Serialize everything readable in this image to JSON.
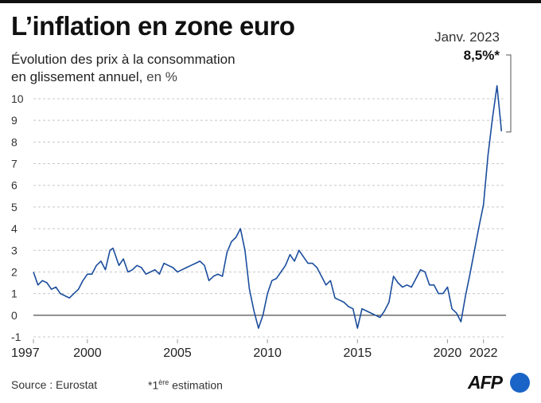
{
  "title": "L’inflation en zone euro",
  "subtitle_line1": "Évolution des prix à la consommation",
  "subtitle_line2": "en glissement annuel,",
  "subtitle_unit": "en %",
  "source": "Source : Eurostat",
  "footnote": {
    "star": "*1",
    "sup": "ère",
    "text": " estimation"
  },
  "logo": {
    "text": "AFP"
  },
  "colors": {
    "line": "#1a4d9c",
    "grid": "#c8c8c8",
    "axis": "#222222",
    "logo": "#1a64c8"
  },
  "chart_data": {
    "type": "line",
    "ylim": [
      -1,
      10.8
    ],
    "xlim": [
      1997,
      2023.25
    ],
    "y_ticks": [
      "10",
      "9",
      "8",
      "7",
      "6",
      "5",
      "4",
      "3",
      "2",
      "1",
      "0",
      "-1"
    ],
    "x_ticks": [
      "1997",
      "2000",
      "2005",
      "2010",
      "2015",
      "2020",
      "2022"
    ],
    "grid": "horizontal dashed",
    "annotation": {
      "label": "Janv. 2023",
      "value_label": "8,5%*",
      "x": 2023.0,
      "y": 8.5
    },
    "series": [
      {
        "x": [
          1997.0,
          1997.25,
          1997.5,
          1997.75,
          1998.0,
          1998.25,
          1998.5,
          1998.75,
          1999.0,
          1999.25,
          1999.5,
          1999.75,
          2000.0,
          2000.25,
          2000.5,
          2000.75,
          2001.0,
          2001.25,
          2001.42,
          2001.75,
          2002.0,
          2002.25,
          2002.5,
          2002.75,
          2003.0,
          2003.25,
          2003.5,
          2003.75,
          2004.0,
          2004.25,
          2004.5,
          2004.75,
          2005.0,
          2005.25,
          2005.5,
          2005.75,
          2006.0,
          2006.25,
          2006.5,
          2006.75,
          2007.0,
          2007.25,
          2007.5,
          2007.75,
          2008.0,
          2008.25,
          2008.5,
          2008.75,
          2009.0,
          2009.25,
          2009.5,
          2009.75,
          2010.0,
          2010.25,
          2010.5,
          2010.75,
          2011.0,
          2011.25,
          2011.5,
          2011.75,
          2012.0,
          2012.25,
          2012.5,
          2012.75,
          2013.0,
          2013.25,
          2013.5,
          2013.75,
          2014.0,
          2014.25,
          2014.5,
          2014.75,
          2015.0,
          2015.25,
          2015.5,
          2015.75,
          2016.0,
          2016.25,
          2016.5,
          2016.75,
          2017.0,
          2017.25,
          2017.5,
          2017.75,
          2018.0,
          2018.25,
          2018.5,
          2018.75,
          2019.0,
          2019.25,
          2019.5,
          2019.75,
          2020.0,
          2020.25,
          2020.5,
          2020.75,
          2021.0,
          2021.25,
          2021.5,
          2021.75,
          2022.0,
          2022.25,
          2022.5,
          2022.75,
          2022.92,
          2023.0
        ],
        "y": [
          2.0,
          1.4,
          1.6,
          1.5,
          1.2,
          1.3,
          1.0,
          0.9,
          0.8,
          1.0,
          1.2,
          1.6,
          1.9,
          1.9,
          2.3,
          2.5,
          2.1,
          3.0,
          3.1,
          2.3,
          2.6,
          2.0,
          2.1,
          2.3,
          2.2,
          1.9,
          2.0,
          2.1,
          1.9,
          2.4,
          2.3,
          2.2,
          2.0,
          2.1,
          2.2,
          2.3,
          2.4,
          2.5,
          2.3,
          1.6,
          1.8,
          1.9,
          1.8,
          2.9,
          3.4,
          3.6,
          4.0,
          3.0,
          1.2,
          0.2,
          -0.6,
          0.0,
          1.0,
          1.6,
          1.7,
          2.0,
          2.3,
          2.8,
          2.5,
          3.0,
          2.7,
          2.4,
          2.4,
          2.2,
          1.8,
          1.4,
          1.6,
          0.8,
          0.7,
          0.6,
          0.4,
          0.3,
          -0.6,
          0.3,
          0.2,
          0.1,
          0.0,
          -0.1,
          0.2,
          0.6,
          1.8,
          1.5,
          1.3,
          1.4,
          1.3,
          1.7,
          2.1,
          2.0,
          1.4,
          1.4,
          1.0,
          1.0,
          1.3,
          0.3,
          0.1,
          -0.3,
          0.9,
          1.9,
          3.0,
          4.1,
          5.1,
          7.4,
          9.1,
          10.6,
          9.2,
          8.5
        ]
      }
    ]
  }
}
